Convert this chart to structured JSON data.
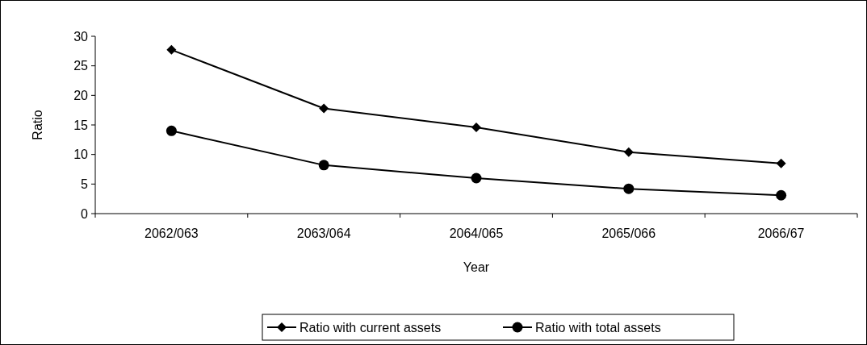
{
  "chart_data": {
    "type": "line",
    "xlabel": "Year",
    "ylabel": "Ratio",
    "categories": [
      "2062/063",
      "2063/064",
      "2064/065",
      "2065/066",
      "2066/67"
    ],
    "series": [
      {
        "name": "Ratio with current assets",
        "color": "#000000",
        "marker": "diamond",
        "values": [
          27.7,
          17.8,
          14.6,
          10.4,
          8.5
        ]
      },
      {
        "name": "Ratio with total assets",
        "color": "#000000",
        "marker": "circle",
        "values": [
          14,
          8.2,
          6,
          4.2,
          3.1
        ]
      }
    ],
    "ylim": [
      0,
      30
    ],
    "yticks": [
      0,
      5,
      10,
      15,
      20,
      25,
      30
    ],
    "grid": false,
    "legend": "bottom"
  }
}
